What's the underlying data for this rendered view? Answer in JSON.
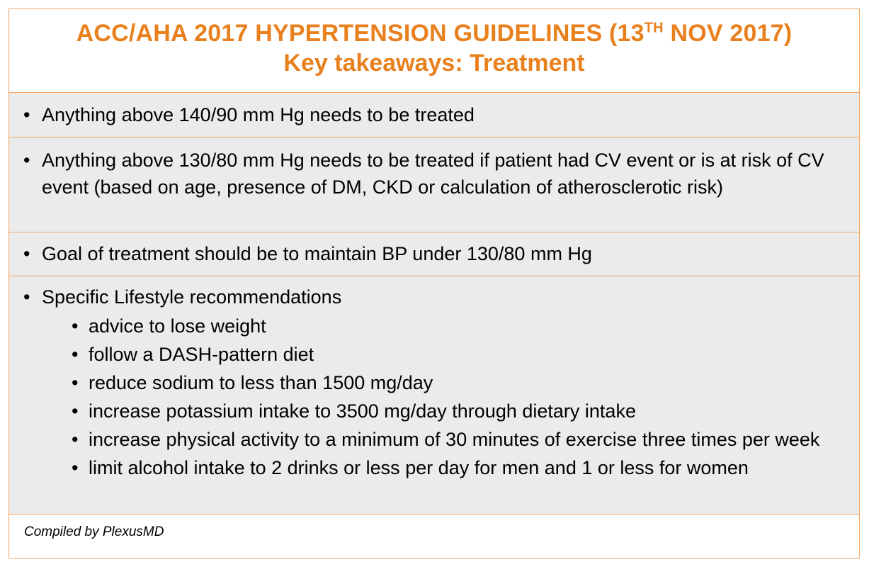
{
  "header": {
    "title_prefix": "ACC/AHA 2017 HYPERTENSION GUIDELINES (13",
    "title_sup": "TH",
    "title_suffix": " NOV 2017)",
    "subtitle": "Key takeaways: Treatment"
  },
  "bullet_glyph": "•",
  "rows": [
    {
      "text": "Anything above 140/90 mm Hg needs to be treated"
    },
    {
      "text": "Anything above 130/80 mm Hg needs to be treated if patient had CV event or is at risk of CV event (based on age, presence of DM, CKD or calculation of atherosclerotic risk)"
    },
    {
      "text": "Goal of treatment should be to maintain BP under 130/80 mm Hg"
    },
    {
      "text": "Specific Lifestyle recommendations",
      "sub_items": [
        "advice to lose weight",
        "follow a DASH-pattern diet",
        "reduce sodium to less than 1500 mg/day",
        "increase potassium intake to 3500 mg/day through dietary intake",
        "increase physical activity to a minimum of 30 minutes of exercise three times per week",
        "limit alcohol intake to 2 drinks or less per day for men and 1 or less for women"
      ]
    }
  ],
  "footer": {
    "credit": "Compiled by PlexusMD"
  },
  "colors": {
    "title": "#e8801d",
    "border": "#f4a460",
    "row_background": "#ebebeb"
  }
}
